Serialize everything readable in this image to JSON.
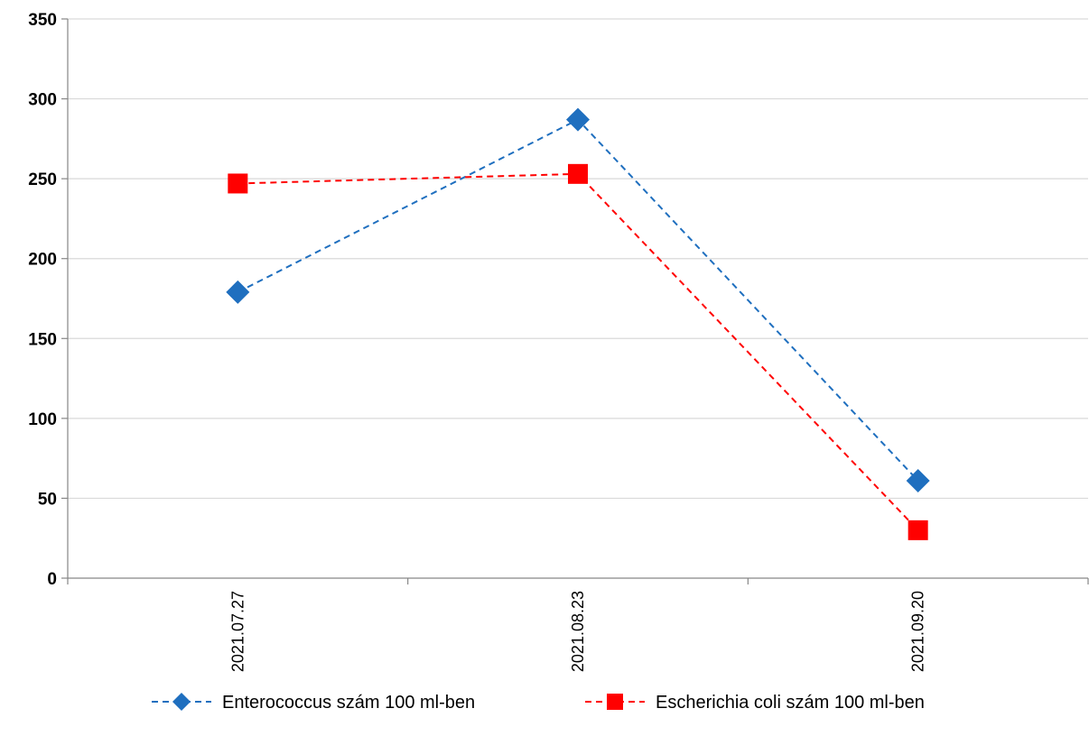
{
  "chart_data": {
    "type": "line",
    "title": "",
    "xlabel": "",
    "ylabel": "",
    "categories": [
      "2021.07.27",
      "2021.08.23",
      "2021.09.20"
    ],
    "ylim": [
      0,
      350
    ],
    "yticks": [
      0,
      50,
      100,
      150,
      200,
      250,
      300,
      350
    ],
    "grid": "horizontal",
    "legend_position": "bottom",
    "series": [
      {
        "name": "Enterococcus szám 100 ml-ben",
        "values": [
          179,
          287,
          61
        ],
        "color": "#1f6fbf",
        "marker": "diamond",
        "line_style": "dashed"
      },
      {
        "name": "Escherichia coli szám 100 ml-ben",
        "values": [
          247,
          253,
          30
        ],
        "color": "#ff0000",
        "marker": "square",
        "line_style": "dashed"
      }
    ]
  }
}
